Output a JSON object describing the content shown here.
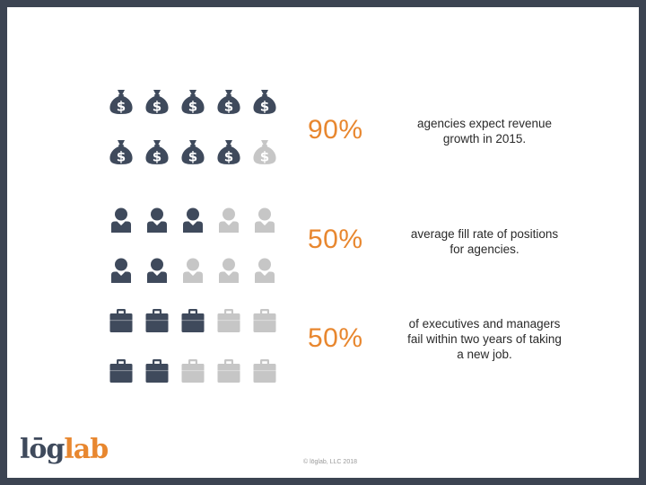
{
  "stats": [
    {
      "value": "90%",
      "description_lines": [
        "agencies expect revenue",
        "growth in 2015."
      ],
      "icon": "money-bag-icon",
      "filled": 9,
      "total": 10
    },
    {
      "value": "50%",
      "description_lines": [
        "average fill rate of positions",
        "for agencies."
      ],
      "icon": "person-icon",
      "filled": 5,
      "total": 10
    },
    {
      "value": "50%",
      "description_lines": [
        "of executives and managers",
        "fail within two years of taking",
        "a new job."
      ],
      "icon": "briefcase-icon",
      "filled": 5,
      "total": 10
    }
  ],
  "logo": {
    "part1": "lōg",
    "part2": "lab"
  },
  "copyright": "© lōglab, LLC 2018",
  "colors": {
    "filled": "#3f4a5c",
    "empty": "#c6c6c6",
    "accent": "#e8872f"
  }
}
